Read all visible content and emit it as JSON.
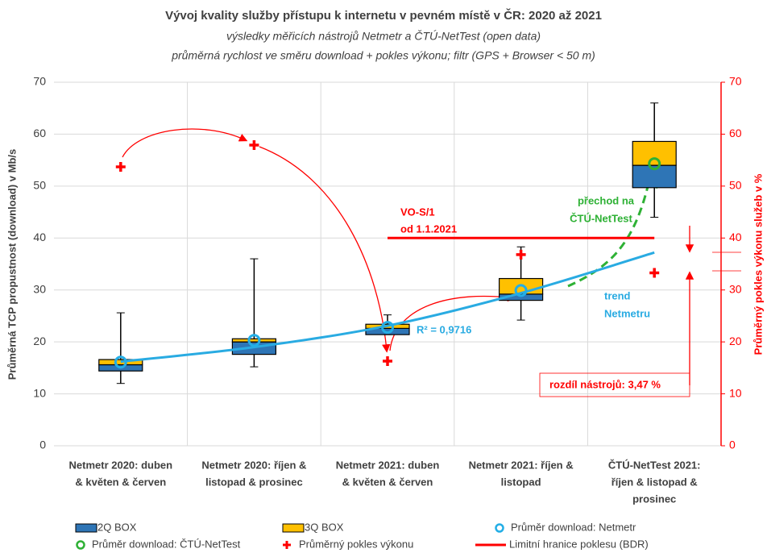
{
  "chart_data": {
    "type": "box",
    "title": "Vývoj kvality služby přístupu k internetu v pevném místě v ČR: 2020 až 2021",
    "subtitle": [
      "výsledky měřicích nástrojů Netmetr a ČTÚ-NetTest (open data)",
      "průměrná rychlost ve směru download + pokles výkonu; filtr (GPS + Browser < 50 m)"
    ],
    "ylabel": "Průměrná TCP propustnost (download) v Mb/s",
    "y2label": "Průměrný pokles výkonu služeb v %",
    "categories": [
      [
        "Netmetr 2020: duben",
        "& květen & červen"
      ],
      [
        "Netmetr 2020: říjen &",
        "listopad & prosinec"
      ],
      [
        "Netmetr 2021: duben",
        "& květen & červen"
      ],
      [
        "Netmetr 2021: říjen &",
        "listopad"
      ],
      [
        "ČTÚ-NetTest 2021:",
        "říjen & listopad &",
        "prosinec"
      ]
    ],
    "ylim": [
      0,
      70
    ],
    "yticks": [
      0,
      10,
      20,
      30,
      40,
      50,
      60,
      70
    ],
    "y2lim": [
      0,
      70
    ],
    "y2ticks": [
      0,
      10,
      20,
      30,
      40,
      50,
      60,
      70
    ],
    "grid": true,
    "box_series": [
      {
        "name": "2Q BOX",
        "color": "#2e75b6"
      },
      {
        "name": "3Q BOX",
        "color": "#ffc000"
      }
    ],
    "boxes": [
      {
        "min": 12,
        "q1": 14.4,
        "median": 15.6,
        "q3": 16.6,
        "max": 25.6
      },
      {
        "min": 15.2,
        "q1": 17.6,
        "median": 20,
        "q3": 20.6,
        "max": 36
      },
      {
        "min": 21.4,
        "q1": 21.4,
        "median": 22.6,
        "q3": 23.4,
        "max": 25.2
      },
      {
        "min": 24.2,
        "q1": 28,
        "median": 29.2,
        "q3": 32.2,
        "max": 38.3
      },
      {
        "min": 44,
        "q1": 49.7,
        "median": 54,
        "q3": 58.6,
        "max": 66
      }
    ],
    "series": [
      {
        "name": "Průměr download: Netmetr",
        "color": "#23aee6",
        "marker": "circle",
        "values": [
          16.1,
          20.3,
          22.8,
          29.9,
          null
        ]
      },
      {
        "name": "Průměr download: ČTÚ-NetTest",
        "color": "#2eb135",
        "marker": "circle",
        "values": [
          null,
          null,
          null,
          null,
          54.3
        ]
      },
      {
        "name": "Průměrný pokles výkonu",
        "color": "#ff0000",
        "marker": "cross",
        "axis": "y2",
        "values": [
          53.7,
          57.9,
          16.3,
          36.8,
          33.3
        ]
      },
      {
        "name": "Limitní hranice poklesu (BDR)",
        "color": "#ff0000",
        "marker": "line",
        "axis": "y2",
        "values": [
          null,
          null,
          40,
          40,
          40
        ]
      }
    ],
    "trend": {
      "color": "#29abe2",
      "values": [
        16.2,
        19.0,
        23.1,
        29.4,
        37.2
      ]
    },
    "annotations": [
      "VO-S/1",
      "od 1.1.2021",
      "přechod na",
      "ČTÚ-NetTest",
      "trend",
      "Netmetru",
      "R² = 0,9716",
      "rozdíl nástrojů: 3,47 %"
    ]
  }
}
